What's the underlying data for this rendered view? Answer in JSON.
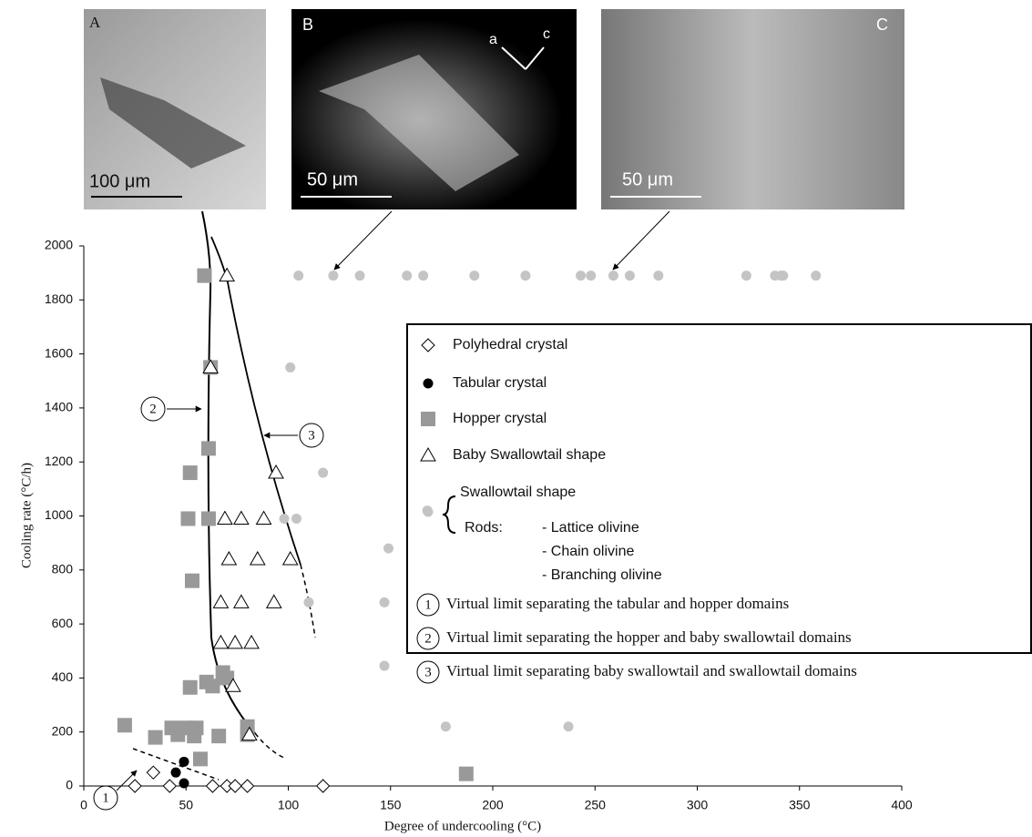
{
  "chart_data": {
    "type": "scatter",
    "x_label": "Degree of undercooling (°C)",
    "y_label": "Cooling rate (°C/h)",
    "xlim": [
      0,
      400
    ],
    "ylim": [
      0,
      2000
    ],
    "xticks": [
      0,
      50,
      100,
      150,
      200,
      250,
      300,
      350,
      400
    ],
    "yticks": [
      0,
      200,
      400,
      600,
      800,
      1000,
      1200,
      1400,
      1600,
      1800,
      2000
    ],
    "series": [
      {
        "name": "Polyhedral crystal",
        "marker": "diamond",
        "color": "#ffffff",
        "x": [
          25,
          34,
          42,
          63,
          70,
          74,
          80,
          117
        ],
        "y": [
          0,
          50,
          0,
          0,
          0,
          0,
          0,
          0
        ]
      },
      {
        "name": "Tabular crystal",
        "marker": "circle",
        "color": "#000000",
        "x": [
          45,
          49,
          49
        ],
        "y": [
          50,
          90,
          10
        ]
      },
      {
        "name": "Hopper crystal",
        "marker": "square",
        "color": "#999999",
        "x": [
          20,
          35,
          43,
          46,
          50,
          55,
          54,
          57,
          66,
          80,
          80,
          187,
          52,
          60,
          63,
          68,
          70,
          53,
          51,
          61,
          52,
          61,
          62,
          59
        ],
        "y": [
          225,
          180,
          215,
          190,
          215,
          215,
          185,
          100,
          185,
          220,
          190,
          45,
          365,
          385,
          370,
          420,
          400,
          760,
          990,
          990,
          1160,
          1250,
          1550,
          1890
        ]
      },
      {
        "name": "Baby Swallowtail shape",
        "marker": "triangle",
        "color": "#ffffff",
        "x": [
          70,
          62,
          94,
          69,
          77,
          88,
          71,
          85,
          101,
          67,
          77,
          93,
          67,
          74,
          82,
          73,
          81
        ],
        "y": [
          1890,
          1550,
          1160,
          990,
          990,
          990,
          840,
          840,
          840,
          680,
          680,
          680,
          530,
          530,
          530,
          370,
          190
        ]
      },
      {
        "name": "Swallowtail shape",
        "marker": "circle",
        "color": "#c4c4c4",
        "x": [
          105,
          122,
          135,
          158,
          166,
          191,
          216,
          243,
          248,
          259,
          267,
          281,
          324,
          338,
          341,
          342,
          358,
          101,
          117,
          98,
          104,
          168,
          149,
          110,
          147,
          147,
          177,
          237
        ],
        "y": [
          1890,
          1890,
          1890,
          1890,
          1890,
          1890,
          1890,
          1890,
          1890,
          1890,
          1890,
          1890,
          1890,
          1890,
          1890,
          1890,
          1890,
          1550,
          1160,
          990,
          990,
          1020,
          880,
          680,
          680,
          445,
          220,
          220
        ]
      }
    ],
    "rods_label": "Rods:",
    "rods": [
      "- Lattice olivine",
      "- Chain olivine",
      "- Branching olivine"
    ],
    "limits": [
      {
        "number": "1",
        "text": "Virtual limit separating the tabular and hopper domains"
      },
      {
        "number": "2",
        "text": "Virtual limit separating the hopper and baby swallowtail domains"
      },
      {
        "number": "3",
        "text": "Virtual limit separating baby swallowtail and swallowtail domains"
      }
    ],
    "panels": [
      {
        "letter": "A",
        "scale": "100 μm"
      },
      {
        "letter": "B",
        "scale": "50 μm",
        "axes": [
          "a",
          "c"
        ]
      },
      {
        "letter": "C",
        "scale": "50 μm"
      }
    ]
  }
}
